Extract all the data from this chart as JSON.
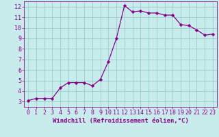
{
  "x": [
    0,
    1,
    2,
    3,
    4,
    5,
    6,
    7,
    8,
    9,
    10,
    11,
    12,
    13,
    14,
    15,
    16,
    17,
    18,
    19,
    20,
    21,
    22,
    23
  ],
  "y": [
    3.1,
    3.3,
    3.3,
    3.3,
    4.3,
    4.8,
    4.8,
    4.8,
    4.5,
    5.1,
    6.8,
    9.0,
    12.1,
    11.5,
    11.6,
    11.4,
    11.4,
    11.2,
    11.2,
    10.3,
    10.2,
    9.8,
    9.3,
    9.4
  ],
  "line_color": "#880088",
  "marker": "D",
  "marker_size": 2.2,
  "bg_color": "#c8ecec",
  "grid_color": "#99cccc",
  "xlabel": "Windchill (Refroidissement éolien,°C)",
  "xlim": [
    -0.5,
    23.5
  ],
  "ylim": [
    2.5,
    12.5
  ],
  "yticks": [
    3,
    4,
    5,
    6,
    7,
    8,
    9,
    10,
    11,
    12
  ],
  "xticks": [
    0,
    1,
    2,
    3,
    4,
    5,
    6,
    7,
    8,
    9,
    10,
    11,
    12,
    13,
    14,
    15,
    16,
    17,
    18,
    19,
    20,
    21,
    22,
    23
  ],
  "tick_color": "#880088",
  "label_color": "#880088",
  "xlabel_fontsize": 6.5,
  "tick_fontsize": 6.0,
  "linewidth": 0.9
}
